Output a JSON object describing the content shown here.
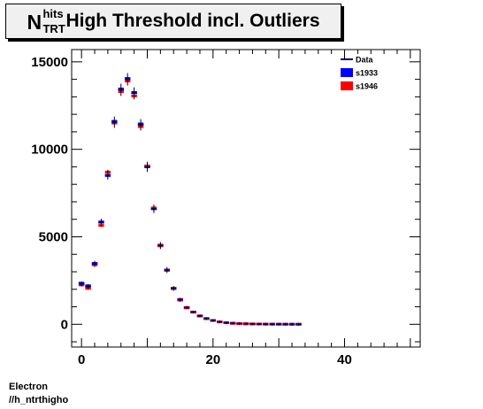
{
  "title": {
    "symbol": "N",
    "superscript": "hits",
    "subscript": "TRT",
    "text": "High Threshold incl. Outliers"
  },
  "footer": {
    "line1": "Electron",
    "line2": "//h_ntrthigho"
  },
  "legend": {
    "entries": [
      {
        "label": "Data",
        "color": "#000080",
        "style": "line"
      },
      {
        "label": "s1933",
        "color": "#0000ff",
        "style": "box"
      },
      {
        "label": "s1946",
        "color": "#ff0000",
        "style": "box"
      }
    ]
  },
  "chart_data": {
    "type": "histogram",
    "title": "N_TRT^hits High Threshold incl. Outliers",
    "xlim": [
      -1.5,
      51.5
    ],
    "ylim": [
      -1300,
      15700
    ],
    "x_ticks": [
      0,
      20,
      40
    ],
    "y_ticks": [
      0,
      5000,
      10000,
      15000
    ],
    "x_tick_labels": [
      "0",
      "20",
      "40"
    ],
    "y_tick_labels": [
      "0",
      "5000",
      "10000",
      "15000"
    ],
    "x": [
      0,
      1,
      2,
      3,
      4,
      5,
      6,
      7,
      8,
      9,
      10,
      11,
      12,
      13,
      14,
      15,
      16,
      17,
      18,
      19,
      20,
      21,
      22,
      23,
      24,
      25,
      26,
      27,
      28,
      29,
      30,
      31,
      32,
      33
    ],
    "series": [
      {
        "name": "Data",
        "color": "#000080",
        "values": [
          2300,
          2150,
          3450,
          5800,
          8550,
          11550,
          13400,
          14000,
          13200,
          11400,
          9000,
          6600,
          4500,
          3100,
          2050,
          1400,
          950,
          700,
          480,
          330,
          220,
          140,
          90,
          60,
          40,
          30,
          20,
          15,
          10,
          8,
          6,
          4,
          3,
          2
        ]
      },
      {
        "name": "s1933",
        "color": "#0000ff",
        "values": [
          2350,
          2200,
          3480,
          5850,
          8500,
          11600,
          13450,
          14050,
          13250,
          11450,
          9000,
          6600,
          4520,
          3100,
          2060,
          1420,
          960,
          700,
          480,
          330,
          220,
          140,
          90,
          60,
          40,
          30,
          20,
          15,
          10,
          8,
          6,
          4,
          3,
          2
        ]
      },
      {
        "name": "s1946",
        "color": "#ff0000",
        "values": [
          2250,
          2050,
          3400,
          5650,
          8700,
          11500,
          13300,
          13900,
          13050,
          11300,
          9050,
          6650,
          4480,
          3080,
          2040,
          1380,
          940,
          690,
          470,
          320,
          215,
          135,
          88,
          58,
          38,
          28,
          18,
          14,
          9,
          7,
          5,
          4,
          3,
          2
        ]
      }
    ]
  }
}
